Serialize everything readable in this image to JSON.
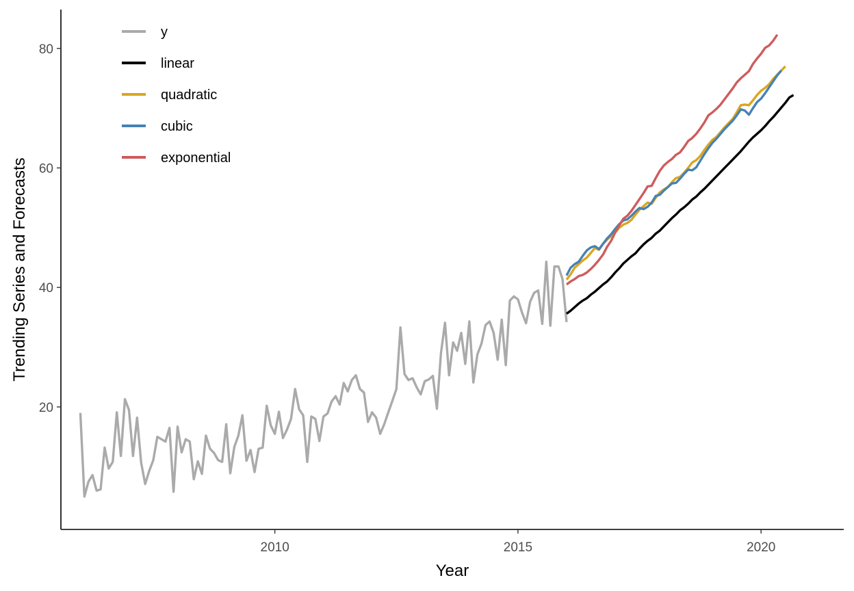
{
  "chart_data": {
    "type": "line",
    "title": "",
    "xlabel": "Year",
    "ylabel": "Trending Series and Forecasts",
    "xlim": [
      2005.6,
      2021.7
    ],
    "ylim": [
      -0.5,
      86.5
    ],
    "x_ticks": [
      2010,
      2015,
      2020
    ],
    "y_ticks": [
      20,
      40,
      60,
      80
    ],
    "grid": false,
    "legend_position": "top-left",
    "series": [
      {
        "name": "y",
        "color": "#AAAAAA",
        "x_start": 2006.0,
        "x_step": 0.08333,
        "values": [
          19.0,
          5.0,
          7.5,
          8.6,
          6.0,
          6.2,
          13.2,
          9.7,
          10.8,
          19.1,
          11.8,
          21.3,
          19.5,
          11.8,
          18.2,
          10.7,
          7.1,
          9.3,
          11.1,
          15.0,
          14.6,
          14.2,
          16.5,
          5.8,
          16.7,
          12.4,
          14.6,
          14.2,
          7.9,
          10.9,
          8.8,
          15.2,
          13.0,
          12.3,
          11.1,
          10.8,
          17.1,
          8.9,
          13.3,
          15.2,
          18.6,
          11.0,
          12.8,
          9.1,
          13.0,
          13.2,
          20.2,
          16.9,
          15.5,
          19.2,
          14.8,
          16.2,
          18.0,
          23.0,
          19.6,
          18.6,
          10.8,
          18.4,
          18.0,
          14.3,
          18.4,
          18.9,
          20.9,
          21.8,
          20.4,
          24.0,
          22.6,
          24.5,
          25.3,
          23.0,
          22.4,
          17.5,
          19.1,
          18.2,
          15.5,
          17.1,
          19.1,
          21.0,
          23.0,
          33.3,
          25.5,
          24.5,
          24.8,
          23.3,
          22.1,
          24.3,
          24.6,
          25.2,
          19.7,
          29.0,
          34.1,
          25.3,
          30.8,
          29.4,
          32.4,
          27.2,
          34.3,
          24.1,
          28.8,
          30.6,
          33.7,
          34.3,
          32.4,
          27.9,
          34.6,
          27.0,
          37.8,
          38.5,
          38.0,
          35.8,
          34.0,
          37.6,
          39.1,
          39.5,
          33.9,
          44.3,
          33.6,
          43.5,
          43.5,
          41.4,
          34.2
        ]
      },
      {
        "name": "linear",
        "color": "#000000",
        "x_start": 2016.0,
        "x_step": 0.08333,
        "values": [
          35.6,
          36.1,
          36.7,
          37.3,
          37.8,
          38.2,
          38.8,
          39.3,
          39.9,
          40.5,
          41.0,
          41.7,
          42.5,
          43.2,
          44.0,
          44.6,
          45.2,
          45.7,
          46.5,
          47.2,
          47.8,
          48.3,
          49.0,
          49.5,
          50.2,
          50.9,
          51.6,
          52.2,
          52.9,
          53.4,
          54.0,
          54.7,
          55.2,
          55.9,
          56.5,
          57.2,
          57.9,
          58.6,
          59.3,
          60.0,
          60.7,
          61.4,
          62.1,
          62.8,
          63.6,
          64.4,
          65.1,
          65.7,
          66.3,
          67.0,
          67.8,
          68.5,
          69.3,
          70.1,
          70.9,
          71.8,
          72.2
        ]
      },
      {
        "name": "quadratic",
        "color": "#DAA520",
        "x_start": 2016.0,
        "x_step": 0.08333,
        "values": [
          41.3,
          42.2,
          43.3,
          43.9,
          44.5,
          45.0,
          45.8,
          46.6,
          46.3,
          47.3,
          48.0,
          48.6,
          49.2,
          50.0,
          50.5,
          50.8,
          51.3,
          52.2,
          53.0,
          53.6,
          54.2,
          54.0,
          55.0,
          55.9,
          56.4,
          56.8,
          57.6,
          58.3,
          58.5,
          59.2,
          60.0,
          60.9,
          61.3,
          62.0,
          63.0,
          63.9,
          64.7,
          65.2,
          66.0,
          66.8,
          67.5,
          68.2,
          69.3,
          70.5,
          70.6,
          70.5,
          71.3,
          72.2,
          72.9,
          73.4,
          74.0,
          74.9,
          75.6,
          76.3,
          77.0
        ]
      },
      {
        "name": "cubic",
        "color": "#4682B4",
        "x_start": 2016.0,
        "x_step": 0.08333,
        "values": [
          42.0,
          43.3,
          43.9,
          44.3,
          45.3,
          46.2,
          46.7,
          46.9,
          46.4,
          47.3,
          48.2,
          48.9,
          49.8,
          50.6,
          51.2,
          51.4,
          52.0,
          52.7,
          53.3,
          53.1,
          53.5,
          54.2,
          55.3,
          55.5,
          56.2,
          56.8,
          57.4,
          57.5,
          58.2,
          59.0,
          59.7,
          59.6,
          60.1,
          61.2,
          62.3,
          63.3,
          64.2,
          64.9,
          65.7,
          66.5,
          67.2,
          67.9,
          68.8,
          69.8,
          69.6,
          68.9,
          70.0,
          71.0,
          71.6,
          72.5,
          73.5,
          74.5,
          75.5,
          76.3
        ]
      },
      {
        "name": "exponential",
        "color": "#CD5C5C",
        "x_start": 2016.0,
        "x_step": 0.08333,
        "values": [
          40.5,
          41.0,
          41.4,
          41.9,
          42.1,
          42.5,
          43.1,
          43.8,
          44.6,
          45.5,
          46.8,
          47.8,
          49.2,
          50.4,
          51.5,
          52.0,
          52.8,
          53.8,
          54.8,
          55.8,
          56.9,
          57.0,
          58.3,
          59.5,
          60.4,
          61.0,
          61.5,
          62.2,
          62.6,
          63.5,
          64.5,
          65.0,
          65.7,
          66.6,
          67.6,
          68.8,
          69.3,
          69.9,
          70.6,
          71.5,
          72.4,
          73.3,
          74.3,
          75.0,
          75.6,
          76.2,
          77.4,
          78.3,
          79.1,
          80.1,
          80.5,
          81.3,
          82.3
        ]
      }
    ]
  }
}
